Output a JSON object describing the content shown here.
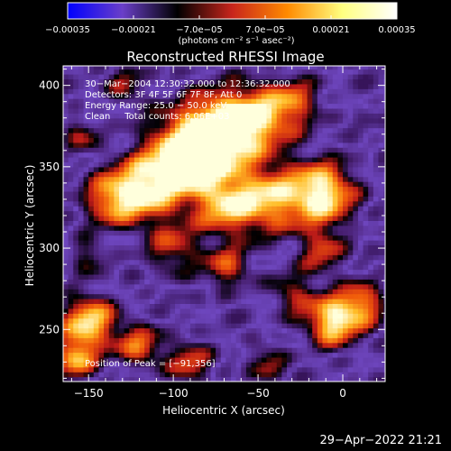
{
  "chart_data": {
    "type": "heatmap",
    "title": "Reconstructed RHESSI Image",
    "xlabel": "Heliocentric X (arcsec)",
    "ylabel": "Heliocentric Y (arcsec)",
    "xlim": [
      -165,
      25
    ],
    "ylim": [
      218,
      412
    ],
    "x_ticks": [
      {
        "value": -150,
        "label": "−150"
      },
      {
        "value": -100,
        "label": "−100"
      },
      {
        "value": -50,
        "label": "−50"
      },
      {
        "value": 0,
        "label": "0"
      }
    ],
    "y_ticks": [
      {
        "value": 250,
        "label": "250"
      },
      {
        "value": 300,
        "label": "300"
      },
      {
        "value": 350,
        "label": "350"
      },
      {
        "value": 400,
        "label": "400"
      }
    ],
    "colorbar": {
      "min": -0.00035,
      "max": 0.00035,
      "unit_label": "(photons cm⁻² s⁻¹ asec⁻²)",
      "ticks": [
        {
          "value": -0.00035,
          "label": "−0.00035"
        },
        {
          "value": -0.00021,
          "label": "−0.00021"
        },
        {
          "value": -7e-05,
          "label": "−7.0e−05"
        },
        {
          "value": 7e-05,
          "label": "7.0e−05"
        },
        {
          "value": 0.00021,
          "label": "0.00021"
        },
        {
          "value": 0.00035,
          "label": "0.00035"
        }
      ],
      "colors": [
        "#0000ff",
        "#6a3fc8",
        "#000000",
        "#c8251c",
        "#ff8a00",
        "#ffff80",
        "#ffffff"
      ]
    },
    "annotations": [
      "30−Mar−2004 12:30:32.000 to 12:36:32.000",
      "Detectors: 3F 4F 5F 6F 7F 8F, Att 0",
      "Energy Range: 25.0 − 50.0 keV",
      "Clean     Total counts: 6.06E+03"
    ],
    "peak_label": "Position of Peak = [−91,356]",
    "peak": {
      "x": -91,
      "y": 356
    },
    "sources": [
      {
        "x": -91,
        "y": 356,
        "r": 18,
        "amp": 1.0
      },
      {
        "x": -72,
        "y": 374,
        "r": 16,
        "amp": 0.75
      },
      {
        "x": -118,
        "y": 336,
        "r": 14,
        "amp": 0.7
      },
      {
        "x": -50,
        "y": 380,
        "r": 15,
        "amp": 0.6
      },
      {
        "x": -28,
        "y": 390,
        "r": 12,
        "amp": 0.45
      },
      {
        "x": -138,
        "y": 330,
        "r": 12,
        "amp": 0.55
      },
      {
        "x": -12,
        "y": 334,
        "r": 14,
        "amp": 0.9
      },
      {
        "x": -45,
        "y": 330,
        "r": 15,
        "amp": 0.7
      },
      {
        "x": -70,
        "y": 325,
        "r": 12,
        "amp": 0.55
      },
      {
        "x": -100,
        "y": 300,
        "r": 12,
        "amp": 0.45
      },
      {
        "x": -12,
        "y": 298,
        "r": 10,
        "amp": 0.45
      },
      {
        "x": -68,
        "y": 288,
        "r": 10,
        "amp": 0.5
      },
      {
        "x": -30,
        "y": 272,
        "r": 10,
        "amp": 0.4
      },
      {
        "x": -6,
        "y": 255,
        "r": 11,
        "amp": 0.85
      },
      {
        "x": 12,
        "y": 266,
        "r": 10,
        "amp": 0.6
      },
      {
        "x": -150,
        "y": 255,
        "r": 12,
        "amp": 0.8
      },
      {
        "x": -158,
        "y": 232,
        "r": 9,
        "amp": 0.65
      },
      {
        "x": -120,
        "y": 240,
        "r": 10,
        "amp": 0.55
      },
      {
        "x": -90,
        "y": 230,
        "r": 10,
        "amp": 0.5
      },
      {
        "x": -45,
        "y": 230,
        "r": 9,
        "amp": 0.4
      },
      {
        "x": -128,
        "y": 400,
        "r": 10,
        "amp": 0.35
      },
      {
        "x": -155,
        "y": 370,
        "r": 8,
        "amp": 0.4
      },
      {
        "x": -150,
        "y": 295,
        "r": 8,
        "amp": 0.35
      }
    ]
  },
  "timestamp": "29−Apr−2022 21:21"
}
